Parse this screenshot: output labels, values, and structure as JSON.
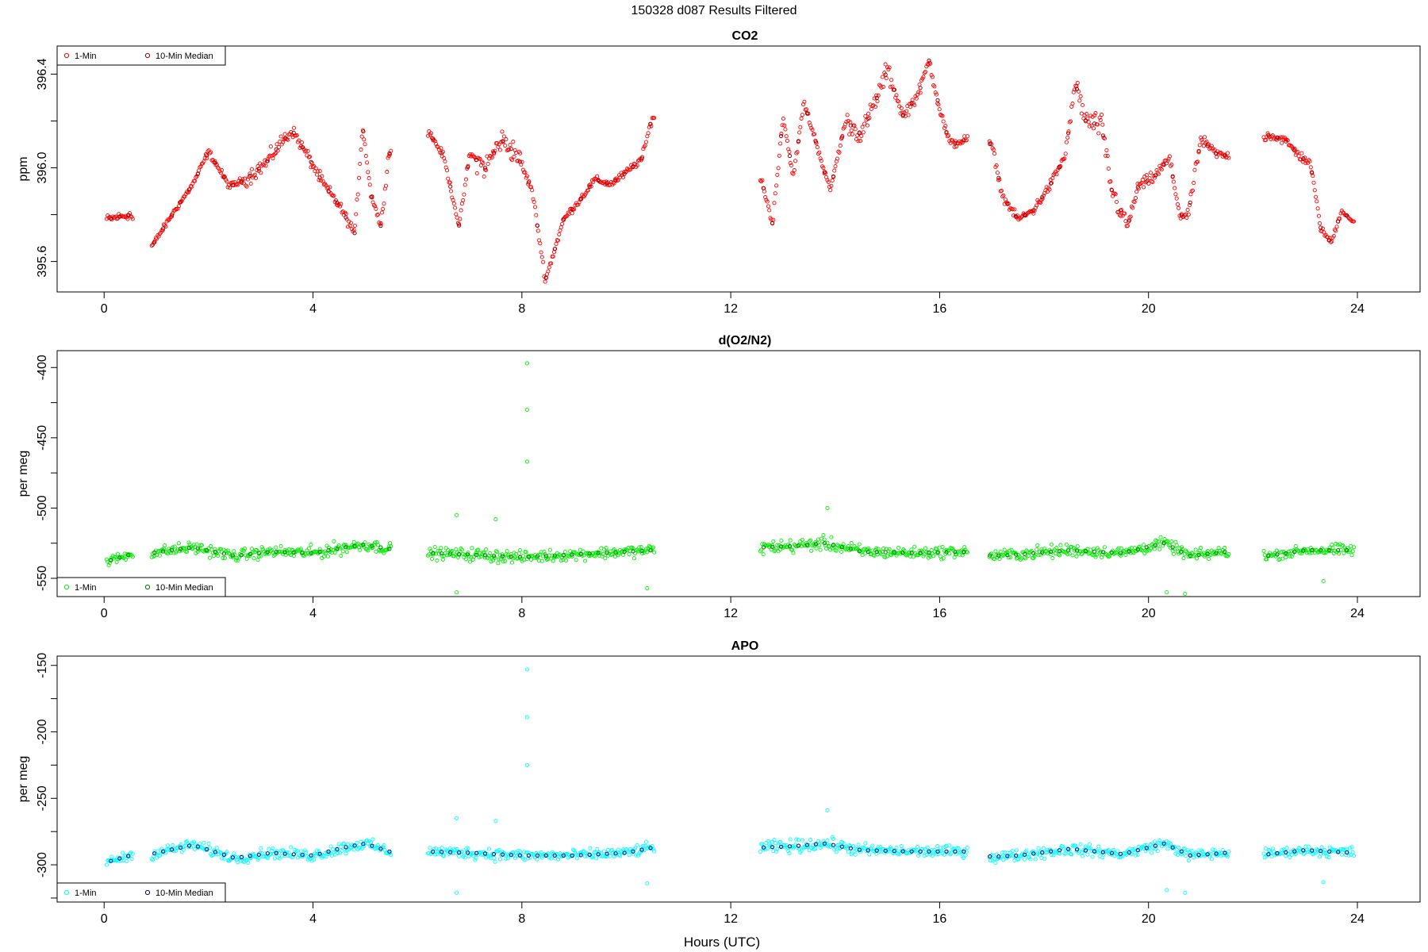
{
  "figure": {
    "title": "150328   d087   Results Filtered",
    "xlabel": "Hours (UTC)"
  },
  "legend_labels": {
    "one_min": "1-Min",
    "ten_min": "10-Min Median"
  },
  "chart_data": [
    {
      "type": "scatter",
      "title": "CO2",
      "ylabel": "ppm",
      "xlim": [
        -0.9,
        25.2
      ],
      "ylim": [
        395.47,
        396.52
      ],
      "xticks": [
        "0",
        "4",
        "8",
        "12",
        "16",
        "20",
        "24"
      ],
      "yticks": [
        "395.6",
        "396.0",
        "396.4"
      ],
      "legend_position": "top-left",
      "colors": {
        "one_min": "#ff0000",
        "ten_min": "#990000"
      },
      "gaps": [
        [
          0.55,
          0.9
        ],
        [
          5.5,
          6.2
        ],
        [
          10.55,
          12.55
        ],
        [
          16.55,
          16.95
        ],
        [
          21.55,
          22.2
        ]
      ],
      "trace": [
        [
          0.05,
          395.78
        ],
        [
          0.5,
          395.8
        ],
        [
          0.9,
          395.66
        ],
        [
          1.3,
          395.8
        ],
        [
          1.7,
          395.93
        ],
        [
          2.0,
          396.07
        ],
        [
          2.4,
          395.92
        ],
        [
          2.7,
          395.95
        ],
        [
          3.1,
          396.02
        ],
        [
          3.4,
          396.11
        ],
        [
          3.6,
          396.16
        ],
        [
          3.9,
          396.05
        ],
        [
          4.2,
          395.93
        ],
        [
          4.5,
          395.84
        ],
        [
          4.8,
          395.72
        ],
        [
          4.95,
          396.18
        ],
        [
          5.1,
          395.9
        ],
        [
          5.3,
          395.75
        ],
        [
          5.45,
          396.06
        ],
        [
          6.2,
          396.16
        ],
        [
          6.5,
          396.05
        ],
        [
          6.8,
          395.75
        ],
        [
          7.0,
          396.06
        ],
        [
          7.3,
          396.0
        ],
        [
          7.6,
          396.12
        ],
        [
          7.9,
          396.06
        ],
        [
          8.2,
          395.9
        ],
        [
          8.45,
          395.52
        ],
        [
          8.8,
          395.78
        ],
        [
          9.1,
          395.86
        ],
        [
          9.4,
          395.95
        ],
        [
          9.7,
          395.93
        ],
        [
          10.0,
          395.98
        ],
        [
          10.3,
          396.04
        ],
        [
          10.5,
          396.22
        ],
        [
          12.6,
          395.94
        ],
        [
          12.8,
          395.76
        ],
        [
          13.0,
          396.22
        ],
        [
          13.2,
          395.96
        ],
        [
          13.4,
          396.28
        ],
        [
          13.7,
          396.06
        ],
        [
          13.9,
          395.9
        ],
        [
          14.2,
          396.2
        ],
        [
          14.5,
          396.14
        ],
        [
          14.8,
          396.3
        ],
        [
          15.0,
          396.42
        ],
        [
          15.3,
          396.22
        ],
        [
          15.6,
          396.32
        ],
        [
          15.8,
          396.46
        ],
        [
          16.0,
          396.25
        ],
        [
          16.2,
          396.1
        ],
        [
          16.5,
          396.12
        ],
        [
          17.0,
          396.1
        ],
        [
          17.2,
          395.88
        ],
        [
          17.5,
          395.78
        ],
        [
          17.8,
          395.82
        ],
        [
          18.1,
          395.92
        ],
        [
          18.4,
          396.05
        ],
        [
          18.6,
          396.36
        ],
        [
          18.8,
          396.2
        ],
        [
          19.1,
          396.18
        ],
        [
          19.3,
          395.9
        ],
        [
          19.6,
          395.75
        ],
        [
          19.8,
          395.92
        ],
        [
          20.1,
          395.96
        ],
        [
          20.4,
          396.04
        ],
        [
          20.6,
          395.8
        ],
        [
          20.75,
          395.79
        ],
        [
          21.0,
          396.12
        ],
        [
          21.3,
          396.06
        ],
        [
          21.5,
          396.05
        ],
        [
          22.3,
          396.14
        ],
        [
          22.6,
          396.12
        ],
        [
          22.9,
          396.05
        ],
        [
          23.1,
          396.02
        ],
        [
          23.3,
          395.74
        ],
        [
          23.5,
          395.68
        ],
        [
          23.7,
          395.82
        ],
        [
          23.95,
          395.76
        ]
      ],
      "jitter": [
        0.045,
        0.03,
        0.035,
        0.08,
        0.06,
        0.05,
        0.05,
        0.035,
        0.12,
        0.04,
        0.035,
        0.04,
        0.03,
        0.04,
        0.04,
        0.04,
        0.1,
        0.06,
        0.05,
        0.04,
        0.05,
        0.12,
        0.06,
        0.06,
        0.04,
        0.05,
        0.03
      ],
      "outliers": []
    },
    {
      "type": "scatter",
      "title": "d(O2/N2)",
      "ylabel": "per meg",
      "xlim": [
        -0.9,
        25.2
      ],
      "ylim": [
        -563,
        -388
      ],
      "xticks": [
        "0",
        "4",
        "8",
        "12",
        "16",
        "20",
        "24"
      ],
      "yticks": [
        "-400",
        "-450",
        "-500",
        "-550"
      ],
      "legend_position": "bottom-left",
      "colors": {
        "one_min": "#00ee00",
        "ten_min": "#007700"
      },
      "gaps": [
        [
          0.55,
          0.9
        ],
        [
          5.5,
          6.2
        ],
        [
          10.55,
          12.55
        ],
        [
          16.55,
          16.95
        ],
        [
          21.55,
          22.2
        ]
      ],
      "trace": [
        [
          0.05,
          -538
        ],
        [
          0.5,
          -533
        ],
        [
          0.9,
          -532
        ],
        [
          1.7,
          -528
        ],
        [
          2.5,
          -534
        ],
        [
          3.2,
          -531
        ],
        [
          4.0,
          -532
        ],
        [
          4.6,
          -528
        ],
        [
          5.0,
          -526
        ],
        [
          5.45,
          -529
        ],
        [
          6.2,
          -532
        ],
        [
          7.0,
          -533
        ],
        [
          8.0,
          -535
        ],
        [
          9.0,
          -533
        ],
        [
          10.0,
          -531
        ],
        [
          10.5,
          -530
        ],
        [
          12.6,
          -528
        ],
        [
          13.2,
          -527
        ],
        [
          13.8,
          -525
        ],
        [
          14.5,
          -531
        ],
        [
          15.5,
          -532
        ],
        [
          16.5,
          -531
        ],
        [
          17.0,
          -534
        ],
        [
          17.5,
          -533
        ],
        [
          18.5,
          -530
        ],
        [
          19.5,
          -532
        ],
        [
          20.3,
          -525
        ],
        [
          20.8,
          -534
        ],
        [
          21.5,
          -531
        ],
        [
          22.3,
          -534
        ],
        [
          23.0,
          -530
        ],
        [
          23.95,
          -530
        ]
      ],
      "jitter": [
        5,
        6,
        6,
        6,
        6,
        7,
        6,
        6,
        6,
        7,
        6,
        6,
        6,
        6,
        7,
        6,
        7,
        7,
        7,
        6,
        6,
        6,
        6,
        7,
        6,
        6,
        6,
        6,
        6,
        5,
        6
      ],
      "outliers": [
        [
          8.1,
          -397
        ],
        [
          8.1,
          -430
        ],
        [
          8.1,
          -467
        ],
        [
          6.75,
          -505
        ],
        [
          7.5,
          -508
        ],
        [
          13.85,
          -500
        ],
        [
          6.75,
          -560
        ],
        [
          10.4,
          -557
        ],
        [
          20.35,
          -560
        ],
        [
          20.7,
          -561
        ],
        [
          23.35,
          -552
        ]
      ]
    },
    {
      "type": "scatter",
      "title": "APO",
      "ylabel": "per meg",
      "xlim": [
        -0.9,
        25.2
      ],
      "ylim": [
        -328,
        -143
      ],
      "xticks": [
        "0",
        "4",
        "8",
        "12",
        "16",
        "20",
        "24"
      ],
      "yticks": [
        "-150",
        "-200",
        "-250",
        "-300"
      ],
      "legend_position": "bottom-left",
      "colors": {
        "one_min": "#00ffff",
        "ten_min": "#000080"
      },
      "gaps": [
        [
          0.55,
          0.9
        ],
        [
          5.5,
          6.2
        ],
        [
          10.55,
          12.55
        ],
        [
          16.55,
          16.95
        ],
        [
          21.55,
          22.2
        ]
      ],
      "trace": [
        [
          0.05,
          -298
        ],
        [
          0.5,
          -293
        ],
        [
          0.9,
          -292
        ],
        [
          1.7,
          -285
        ],
        [
          2.5,
          -295
        ],
        [
          3.2,
          -291
        ],
        [
          4.0,
          -293
        ],
        [
          4.6,
          -287
        ],
        [
          5.0,
          -284
        ],
        [
          5.45,
          -290
        ],
        [
          6.2,
          -290
        ],
        [
          7.0,
          -291
        ],
        [
          8.0,
          -293
        ],
        [
          9.0,
          -293
        ],
        [
          10.0,
          -291
        ],
        [
          10.5,
          -287
        ],
        [
          12.6,
          -287
        ],
        [
          13.2,
          -286
        ],
        [
          13.8,
          -284
        ],
        [
          14.5,
          -289
        ],
        [
          15.5,
          -290
        ],
        [
          16.5,
          -290
        ],
        [
          17.0,
          -294
        ],
        [
          17.5,
          -293
        ],
        [
          18.5,
          -288
        ],
        [
          19.5,
          -292
        ],
        [
          20.3,
          -284
        ],
        [
          20.8,
          -293
        ],
        [
          21.5,
          -291
        ],
        [
          22.3,
          -292
        ],
        [
          23.0,
          -289
        ],
        [
          23.95,
          -291
        ]
      ],
      "jitter": [
        5,
        6,
        6,
        6,
        6,
        7,
        6,
        6,
        6,
        7,
        6,
        6,
        6,
        6,
        7,
        6,
        7,
        7,
        7,
        6,
        6,
        6,
        6,
        7,
        6,
        6,
        6,
        6,
        6,
        5,
        6
      ],
      "outliers": [
        [
          8.1,
          -153
        ],
        [
          8.1,
          -189
        ],
        [
          8.1,
          -225
        ],
        [
          6.75,
          -265
        ],
        [
          7.5,
          -267
        ],
        [
          13.85,
          -259
        ],
        [
          6.75,
          -321
        ],
        [
          10.4,
          -314
        ],
        [
          20.35,
          -319
        ],
        [
          20.7,
          -321
        ],
        [
          23.35,
          -313
        ]
      ]
    }
  ]
}
